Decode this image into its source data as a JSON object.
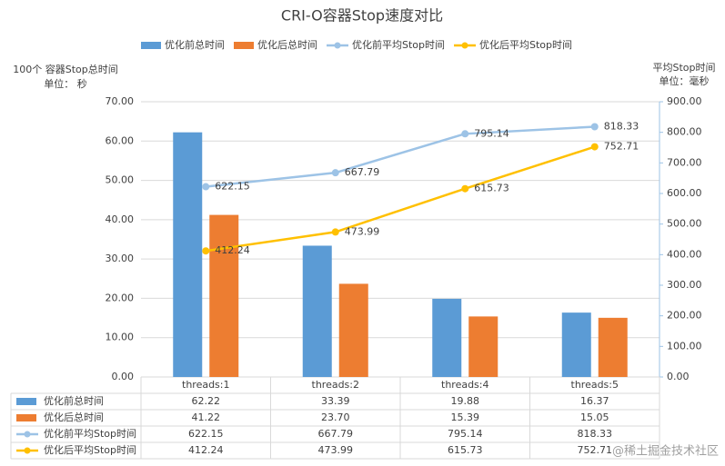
{
  "chart_data": {
    "type": "bar",
    "title": "CRI-O容器Stop速度对比",
    "y_label": "100个 容器Stop总时间",
    "y_unit": "单位： 秒",
    "y2_label": "平均Stop时间",
    "y2_unit": "单位：毫秒",
    "watermark": "@稀土掘金技术社区",
    "categories": [
      "threads:1",
      "threads:2",
      "threads:4",
      "threads:5"
    ],
    "series": [
      {
        "name": "优化前总时间",
        "type": "bar",
        "color": "#5b9bd5",
        "values": [
          62.22,
          33.39,
          19.88,
          16.37
        ],
        "value_labels": [
          "62.22",
          "33.39",
          "19.88",
          "16.37"
        ]
      },
      {
        "name": "优化后总时间",
        "type": "bar",
        "color": "#ed7d31",
        "values": [
          41.22,
          23.7,
          15.39,
          15.05
        ],
        "value_labels": [
          "41.22",
          "23.70",
          "15.39",
          "15.05"
        ]
      },
      {
        "name": "优化前平均Stop时间",
        "type": "line",
        "axis": "y2",
        "color": "#9dc3e6",
        "values": [
          622.15,
          667.79,
          795.14,
          818.33
        ],
        "value_labels": [
          "622.15",
          "667.79",
          "795.14",
          "818.33"
        ]
      },
      {
        "name": "优化后平均Stop时间",
        "type": "line",
        "axis": "y2",
        "color": "#ffc000",
        "values": [
          412.24,
          473.99,
          615.73,
          752.71
        ],
        "value_labels": [
          "412.24",
          "473.99",
          "615.73",
          "752.71"
        ]
      }
    ],
    "ylim": [
      0,
      70
    ],
    "yticks": [
      {
        "value": 0,
        "label": "0.00"
      },
      {
        "value": 10,
        "label": "10.00"
      },
      {
        "value": 20,
        "label": "20.00"
      },
      {
        "value": 30,
        "label": "30.00"
      },
      {
        "value": 40,
        "label": "40.00"
      },
      {
        "value": 50,
        "label": "50.00"
      },
      {
        "value": 60,
        "label": "60.00"
      },
      {
        "value": 70,
        "label": "70.00"
      }
    ],
    "y2lim": [
      0,
      900
    ],
    "y2ticks": [
      {
        "value": 0,
        "label": "0.00"
      },
      {
        "value": 100,
        "label": "100.00"
      },
      {
        "value": 200,
        "label": "200.00"
      },
      {
        "value": 300,
        "label": "300.00"
      },
      {
        "value": 400,
        "label": "400.00"
      },
      {
        "value": 500,
        "label": "500.00"
      },
      {
        "value": 600,
        "label": "600.00"
      },
      {
        "value": 700,
        "label": "700.00"
      },
      {
        "value": 800,
        "label": "800.00"
      },
      {
        "value": 900,
        "label": "900.00"
      }
    ],
    "grid": true,
    "legend": "top"
  }
}
